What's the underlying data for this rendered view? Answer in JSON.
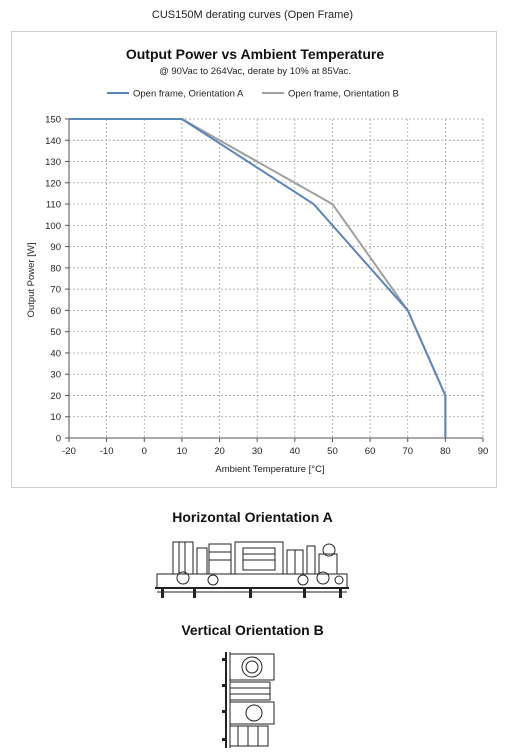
{
  "page": {
    "doc_title": "CUS150M derating curves (Open Frame)"
  },
  "chart_data": {
    "type": "line",
    "title": "Output Power vs Ambient Temperature",
    "subtitle": "@ 90Vac to 264Vac, derate by 10% at 85Vac.",
    "xlabel": "Ambient Temperature [°C]",
    "ylabel": "Output Power [W]",
    "xlim": [
      -20,
      90
    ],
    "ylim": [
      0,
      150
    ],
    "x_ticks": [
      -20,
      -10,
      0,
      10,
      20,
      30,
      40,
      50,
      60,
      70,
      80,
      90
    ],
    "y_ticks": [
      0,
      10,
      20,
      30,
      40,
      50,
      60,
      70,
      80,
      90,
      100,
      110,
      120,
      130,
      140,
      150
    ],
    "grid": true,
    "legend_position": "top",
    "series": [
      {
        "name": "Open frame, Orientation A",
        "color": "#5b86b9",
        "x": [
          -20,
          10,
          45,
          70,
          80,
          80
        ],
        "y": [
          150,
          150,
          110,
          60,
          20,
          0
        ]
      },
      {
        "name": "Open frame, Orientation B",
        "color": "#a0a0a0",
        "x": [
          -20,
          10,
          50,
          70,
          80,
          80
        ],
        "y": [
          150,
          150,
          110,
          60,
          20,
          0
        ]
      }
    ]
  },
  "sections": {
    "horizontal_title": "Horizontal Orientation A",
    "vertical_title": "Vertical Orientation B"
  }
}
